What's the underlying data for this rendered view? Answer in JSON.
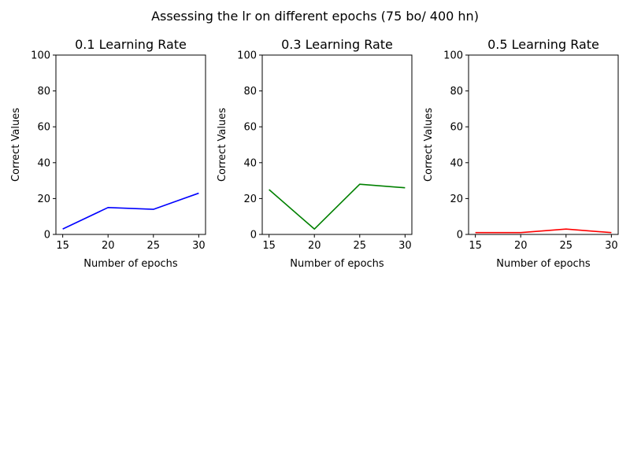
{
  "suptitle": "Assessing the lr on different epochs (75 bo/ 400 hn)",
  "chart_data": [
    {
      "type": "line",
      "title": "0.1 Learning Rate",
      "xlabel": "Number of epochs",
      "ylabel": "Correct Values",
      "x": [
        15,
        20,
        25,
        30
      ],
      "xticks": [
        15,
        20,
        25,
        30
      ],
      "ylim": [
        0,
        100
      ],
      "yticks": [
        0,
        20,
        40,
        60,
        80,
        100
      ],
      "grid": false,
      "series": [
        {
          "values": [
            3,
            15,
            14,
            23
          ],
          "color": "#0000ff"
        }
      ]
    },
    {
      "type": "line",
      "title": "0.3 Learning Rate",
      "xlabel": "Number of epochs",
      "ylabel": "Correct Values",
      "x": [
        15,
        20,
        25,
        30
      ],
      "xticks": [
        15,
        20,
        25,
        30
      ],
      "ylim": [
        0,
        100
      ],
      "yticks": [
        0,
        20,
        40,
        60,
        80,
        100
      ],
      "grid": false,
      "series": [
        {
          "values": [
            25,
            3,
            28,
            26
          ],
          "color": "#008000"
        }
      ]
    },
    {
      "type": "line",
      "title": "0.5 Learning Rate",
      "xlabel": "Number of epochs",
      "ylabel": "Correct Values",
      "x": [
        15,
        20,
        25,
        30
      ],
      "xticks": [
        15,
        20,
        25,
        30
      ],
      "ylim": [
        0,
        100
      ],
      "yticks": [
        0,
        20,
        40,
        60,
        80,
        100
      ],
      "grid": false,
      "series": [
        {
          "values": [
            1,
            1,
            3,
            1
          ],
          "color": "#ff0000"
        }
      ]
    }
  ]
}
